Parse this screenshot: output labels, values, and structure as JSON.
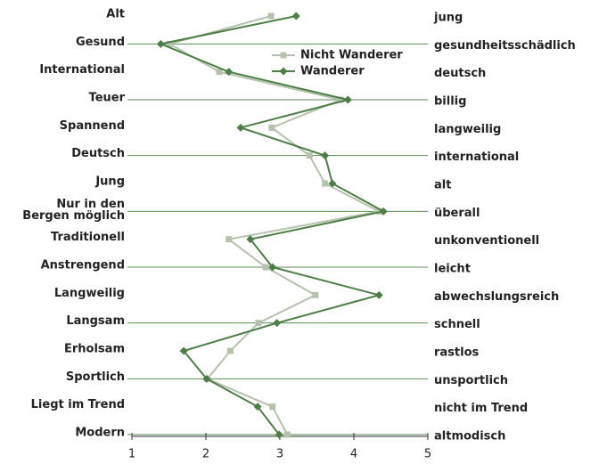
{
  "chart_data": {
    "type": "line",
    "orientation": "horizontal",
    "categories": [
      "Alt",
      "Gesund",
      "International",
      "Teuer",
      "Spannend",
      "Deutsch",
      "Jung",
      "Nur in den\nBergen möglich",
      "Traditionell",
      "Anstrengend",
      "Langweilig",
      "Langsam",
      "Erholsam",
      "Sportlich",
      "Liegt im Trend",
      "Modern"
    ],
    "right_labels": [
      "jung",
      "gesundheitsschädlich",
      "deutsch",
      "billig",
      "langweilig",
      "international",
      "alt",
      "überall",
      "unkonventionell",
      "leicht",
      "abwechslungsreich",
      "schnell",
      "rastlos",
      "unsportlich",
      "nicht im Trend",
      "altmodisch"
    ],
    "series": [
      {
        "name": "Nicht Wanderer",
        "color": "#b5c2ad",
        "marker": "square",
        "values": [
          2.88,
          1.51,
          2.18,
          3.82,
          2.89,
          3.4,
          3.61,
          4.34,
          2.31,
          2.81,
          3.48,
          2.71,
          2.33,
          2.02,
          2.9,
          3.1
        ]
      },
      {
        "name": "Wanderer",
        "color": "#4e7d48",
        "marker": "diamond",
        "values": [
          3.22,
          1.39,
          2.31,
          3.92,
          2.47,
          3.61,
          3.71,
          4.4,
          2.6,
          2.9,
          4.34,
          2.96,
          1.7,
          2.01,
          2.7,
          2.99
        ]
      }
    ],
    "xlim": [
      1,
      5
    ],
    "xticks": [
      1,
      2,
      3,
      4,
      5
    ],
    "legend": "upper right"
  }
}
